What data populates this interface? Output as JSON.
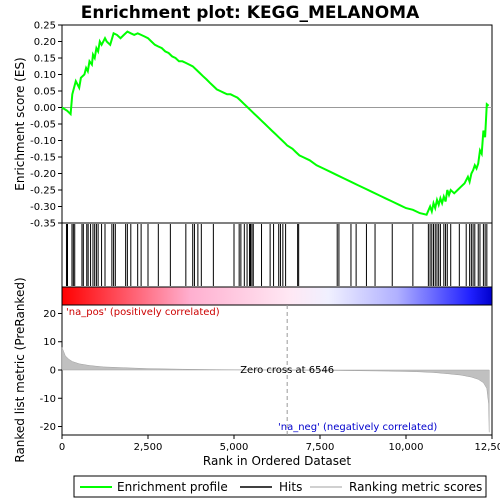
{
  "chart_data": {
    "type": "line",
    "title": "Enrichment plot: KEGG_MELANOMA",
    "top_panel": {
      "ylabel": "Enrichment score (ES)",
      "ylim": [
        -0.35,
        0.25
      ],
      "yticks": [
        "0.25",
        "0.20",
        "0.15",
        "0.10",
        "0.05",
        "0.00",
        "-0.05",
        "-0.10",
        "-0.15",
        "-0.20",
        "-0.25",
        "-0.30",
        "-0.35"
      ],
      "ytick_values": [
        0.25,
        0.2,
        0.15,
        0.1,
        0.05,
        0.0,
        -0.05,
        -0.1,
        -0.15,
        -0.2,
        -0.25,
        -0.3,
        -0.35
      ],
      "series_name": "Enrichment profile",
      "color": "#00ff00",
      "x": [
        0,
        150,
        250,
        300,
        400,
        500,
        550,
        650,
        700,
        750,
        800,
        870,
        900,
        950,
        1000,
        1050,
        1100,
        1150,
        1250,
        1300,
        1400,
        1500,
        1600,
        1700,
        1800,
        1900,
        2000,
        2100,
        2200,
        2300,
        2400,
        2500,
        2600,
        2700,
        2800,
        2900,
        3000,
        3100,
        3200,
        3300,
        3400,
        3500,
        3600,
        3700,
        3800,
        3900,
        4000,
        4100,
        4200,
        4300,
        4400,
        4500,
        4600,
        4700,
        4800,
        4900,
        5000,
        5100,
        5200,
        5300,
        5400,
        5500,
        5600,
        5700,
        5800,
        5900,
        6000,
        6100,
        6200,
        6300,
        6400,
        6500,
        6546,
        6700,
        6800,
        6900,
        7000,
        7200,
        7400,
        7600,
        7800,
        8000,
        8200,
        8400,
        8600,
        8800,
        9000,
        9200,
        9400,
        9600,
        9800,
        10000,
        10200,
        10400,
        10600,
        10700,
        10750,
        10800,
        10850,
        10900,
        10950,
        11000,
        11050,
        11100,
        11150,
        11200,
        11250,
        11300,
        11400,
        11500,
        11600,
        11700,
        11800,
        11850,
        11900,
        11950,
        12000,
        12050,
        12100,
        12150,
        12200,
        12250,
        12300,
        12350,
        12400
      ],
      "y": [
        0.0,
        -0.01,
        -0.02,
        0.04,
        0.08,
        0.06,
        0.09,
        0.1,
        0.12,
        0.11,
        0.14,
        0.13,
        0.16,
        0.15,
        0.18,
        0.17,
        0.2,
        0.19,
        0.21,
        0.2,
        0.19,
        0.225,
        0.22,
        0.21,
        0.22,
        0.23,
        0.225,
        0.22,
        0.225,
        0.22,
        0.215,
        0.21,
        0.2,
        0.19,
        0.185,
        0.18,
        0.17,
        0.165,
        0.155,
        0.15,
        0.14,
        0.14,
        0.135,
        0.13,
        0.125,
        0.115,
        0.105,
        0.095,
        0.085,
        0.075,
        0.065,
        0.055,
        0.05,
        0.045,
        0.04,
        0.04,
        0.035,
        0.03,
        0.02,
        0.01,
        0.0,
        -0.01,
        -0.02,
        -0.03,
        -0.04,
        -0.05,
        -0.06,
        -0.07,
        -0.08,
        -0.09,
        -0.1,
        -0.11,
        -0.115,
        -0.125,
        -0.135,
        -0.145,
        -0.15,
        -0.16,
        -0.175,
        -0.185,
        -0.195,
        -0.205,
        -0.215,
        -0.225,
        -0.235,
        -0.245,
        -0.255,
        -0.265,
        -0.275,
        -0.285,
        -0.295,
        -0.305,
        -0.31,
        -0.32,
        -0.325,
        -0.3,
        -0.315,
        -0.29,
        -0.305,
        -0.28,
        -0.295,
        -0.275,
        -0.29,
        -0.27,
        -0.285,
        -0.25,
        -0.265,
        -0.25,
        -0.26,
        -0.25,
        -0.24,
        -0.23,
        -0.21,
        -0.225,
        -0.2,
        -0.19,
        -0.175,
        -0.185,
        -0.17,
        -0.13,
        -0.14,
        -0.07,
        -0.09,
        0.01,
        0.005
      ]
    },
    "hits": [
      130,
      160,
      290,
      330,
      370,
      580,
      620,
      720,
      760,
      830,
      900,
      950,
      1000,
      1050,
      1150,
      1250,
      1450,
      1500,
      1550,
      1850,
      1900,
      2000,
      2200,
      2300,
      2500,
      2800,
      3150,
      3600,
      3800,
      3850,
      3950,
      4050,
      4400,
      5000,
      5150,
      5200,
      5300,
      5380,
      5450,
      5480,
      5520,
      5560,
      5800,
      6050,
      6150,
      6300,
      6350,
      6420,
      6500,
      6850,
      6880,
      8000,
      8050,
      8400,
      8550,
      8850,
      9100,
      9600,
      10200,
      10650,
      10700,
      10750,
      10800,
      10850,
      10900,
      10950,
      11000,
      11100,
      11150,
      11200,
      11300,
      11550,
      11750,
      11850,
      11900,
      11950,
      12000,
      12100,
      12150,
      12250,
      12300,
      12350
    ],
    "middle_panel": {
      "ylabel": "Ranked list metric (PreRanked)",
      "ylim": [
        -23,
        23
      ],
      "yticks": [
        "20",
        "10",
        "0",
        "-10",
        "-20"
      ],
      "ytick_values": [
        20,
        10,
        0,
        -10,
        -20
      ],
      "metric_x": [
        0,
        50,
        100,
        200,
        300,
        500,
        800,
        1200,
        1800,
        2500,
        3500,
        4500,
        5500,
        6546,
        7500,
        8500,
        9500,
        10300,
        10800,
        11200,
        11600,
        11900,
        12100,
        12250,
        12350,
        12400,
        12420
      ],
      "metric_y": [
        8,
        6.5,
        5,
        3.8,
        3.0,
        2.2,
        1.6,
        1.1,
        0.8,
        0.5,
        0.3,
        0.15,
        0.05,
        0,
        -0.1,
        -0.25,
        -0.4,
        -0.6,
        -0.9,
        -1.3,
        -1.8,
        -2.5,
        -3.3,
        -4.5,
        -6.5,
        -12,
        -22
      ],
      "zero_cross_label": "Zero cross at 6546",
      "zero_cross": 6546,
      "pos_label": "'na_pos' (positively correlated)",
      "neg_label": "'na_neg' (negatively correlated)",
      "pos_color": "#cc0000",
      "neg_color": "#0000cc"
    },
    "xaxis": {
      "xlabel": "Rank in Ordered Dataset",
      "xlim": [
        0,
        12500
      ],
      "xticks": [
        "0",
        "2,500",
        "5,000",
        "7,500",
        "10,000",
        "12,500"
      ],
      "xtick_values": [
        0,
        2500,
        5000,
        7500,
        10000,
        12500
      ]
    },
    "legend": {
      "placement": "bottom",
      "entries": [
        {
          "label": "Enrichment profile",
          "color": "#00ff00"
        },
        {
          "label": "Hits",
          "color": "#000000"
        },
        {
          "label": "Ranking metric scores",
          "color": "#c0c0c0"
        }
      ]
    }
  }
}
